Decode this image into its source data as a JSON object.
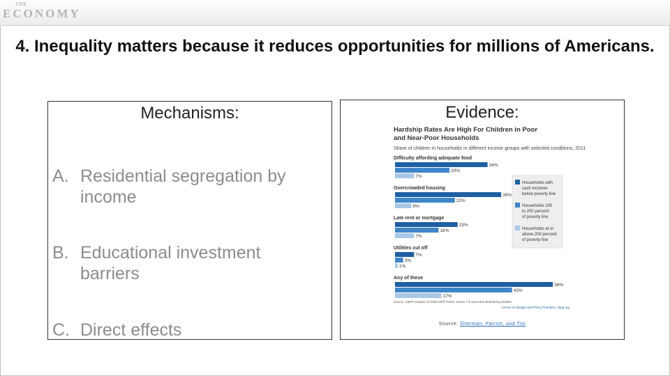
{
  "logo": {
    "small": "THE",
    "text": "ECONOMY"
  },
  "title": "4. Inequality matters because it reduces opportunities for millions of Americans.",
  "left": {
    "heading": "Mechanisms:",
    "items": [
      {
        "letter": "A.",
        "line1": "Residential segregation by",
        "line2": "income"
      },
      {
        "letter": "B.",
        "line1": "Educational investment",
        "line2": "barriers"
      },
      {
        "letter": "C.",
        "line1": "Direct effects",
        "line2": ""
      }
    ]
  },
  "right": {
    "heading": "Evidence:",
    "source_label": "Source:",
    "source_link": "Sherman, Parrott, and Tisi"
  },
  "chart_data": {
    "type": "bar",
    "title": "Hardship Rates Are High For Children in Poor and Near-Poor Households",
    "subtitle": "Share of children in households in different income groups with selected conditions, 2011",
    "categories": [
      "Difficulty affording adequate food",
      "Overcrowded housing",
      "Late rent or mortgage",
      "Utilities cut off",
      "Any of these"
    ],
    "series": [
      {
        "name": "Households with cash incomes below poverty line",
        "color": "#1f5fa3",
        "values": [
          34,
          39,
          23,
          7,
          58
        ]
      },
      {
        "name": "Households 100 to 200 percent of poverty line",
        "color": "#3f86c8",
        "values": [
          20,
          22,
          16,
          3,
          43
        ]
      },
      {
        "name": "Households at or above 200 percent of poverty line",
        "color": "#a9c7e6",
        "values": [
          7,
          6,
          7,
          1,
          17
        ]
      }
    ],
    "value_suffix": "%",
    "footnote": "Source: CBPP analysis of 2008 SIPP Panel, waves 7-9 and Adult Well-Being Module",
    "credit": "Center on Budget and Policy Priorities | cbpp.org"
  }
}
